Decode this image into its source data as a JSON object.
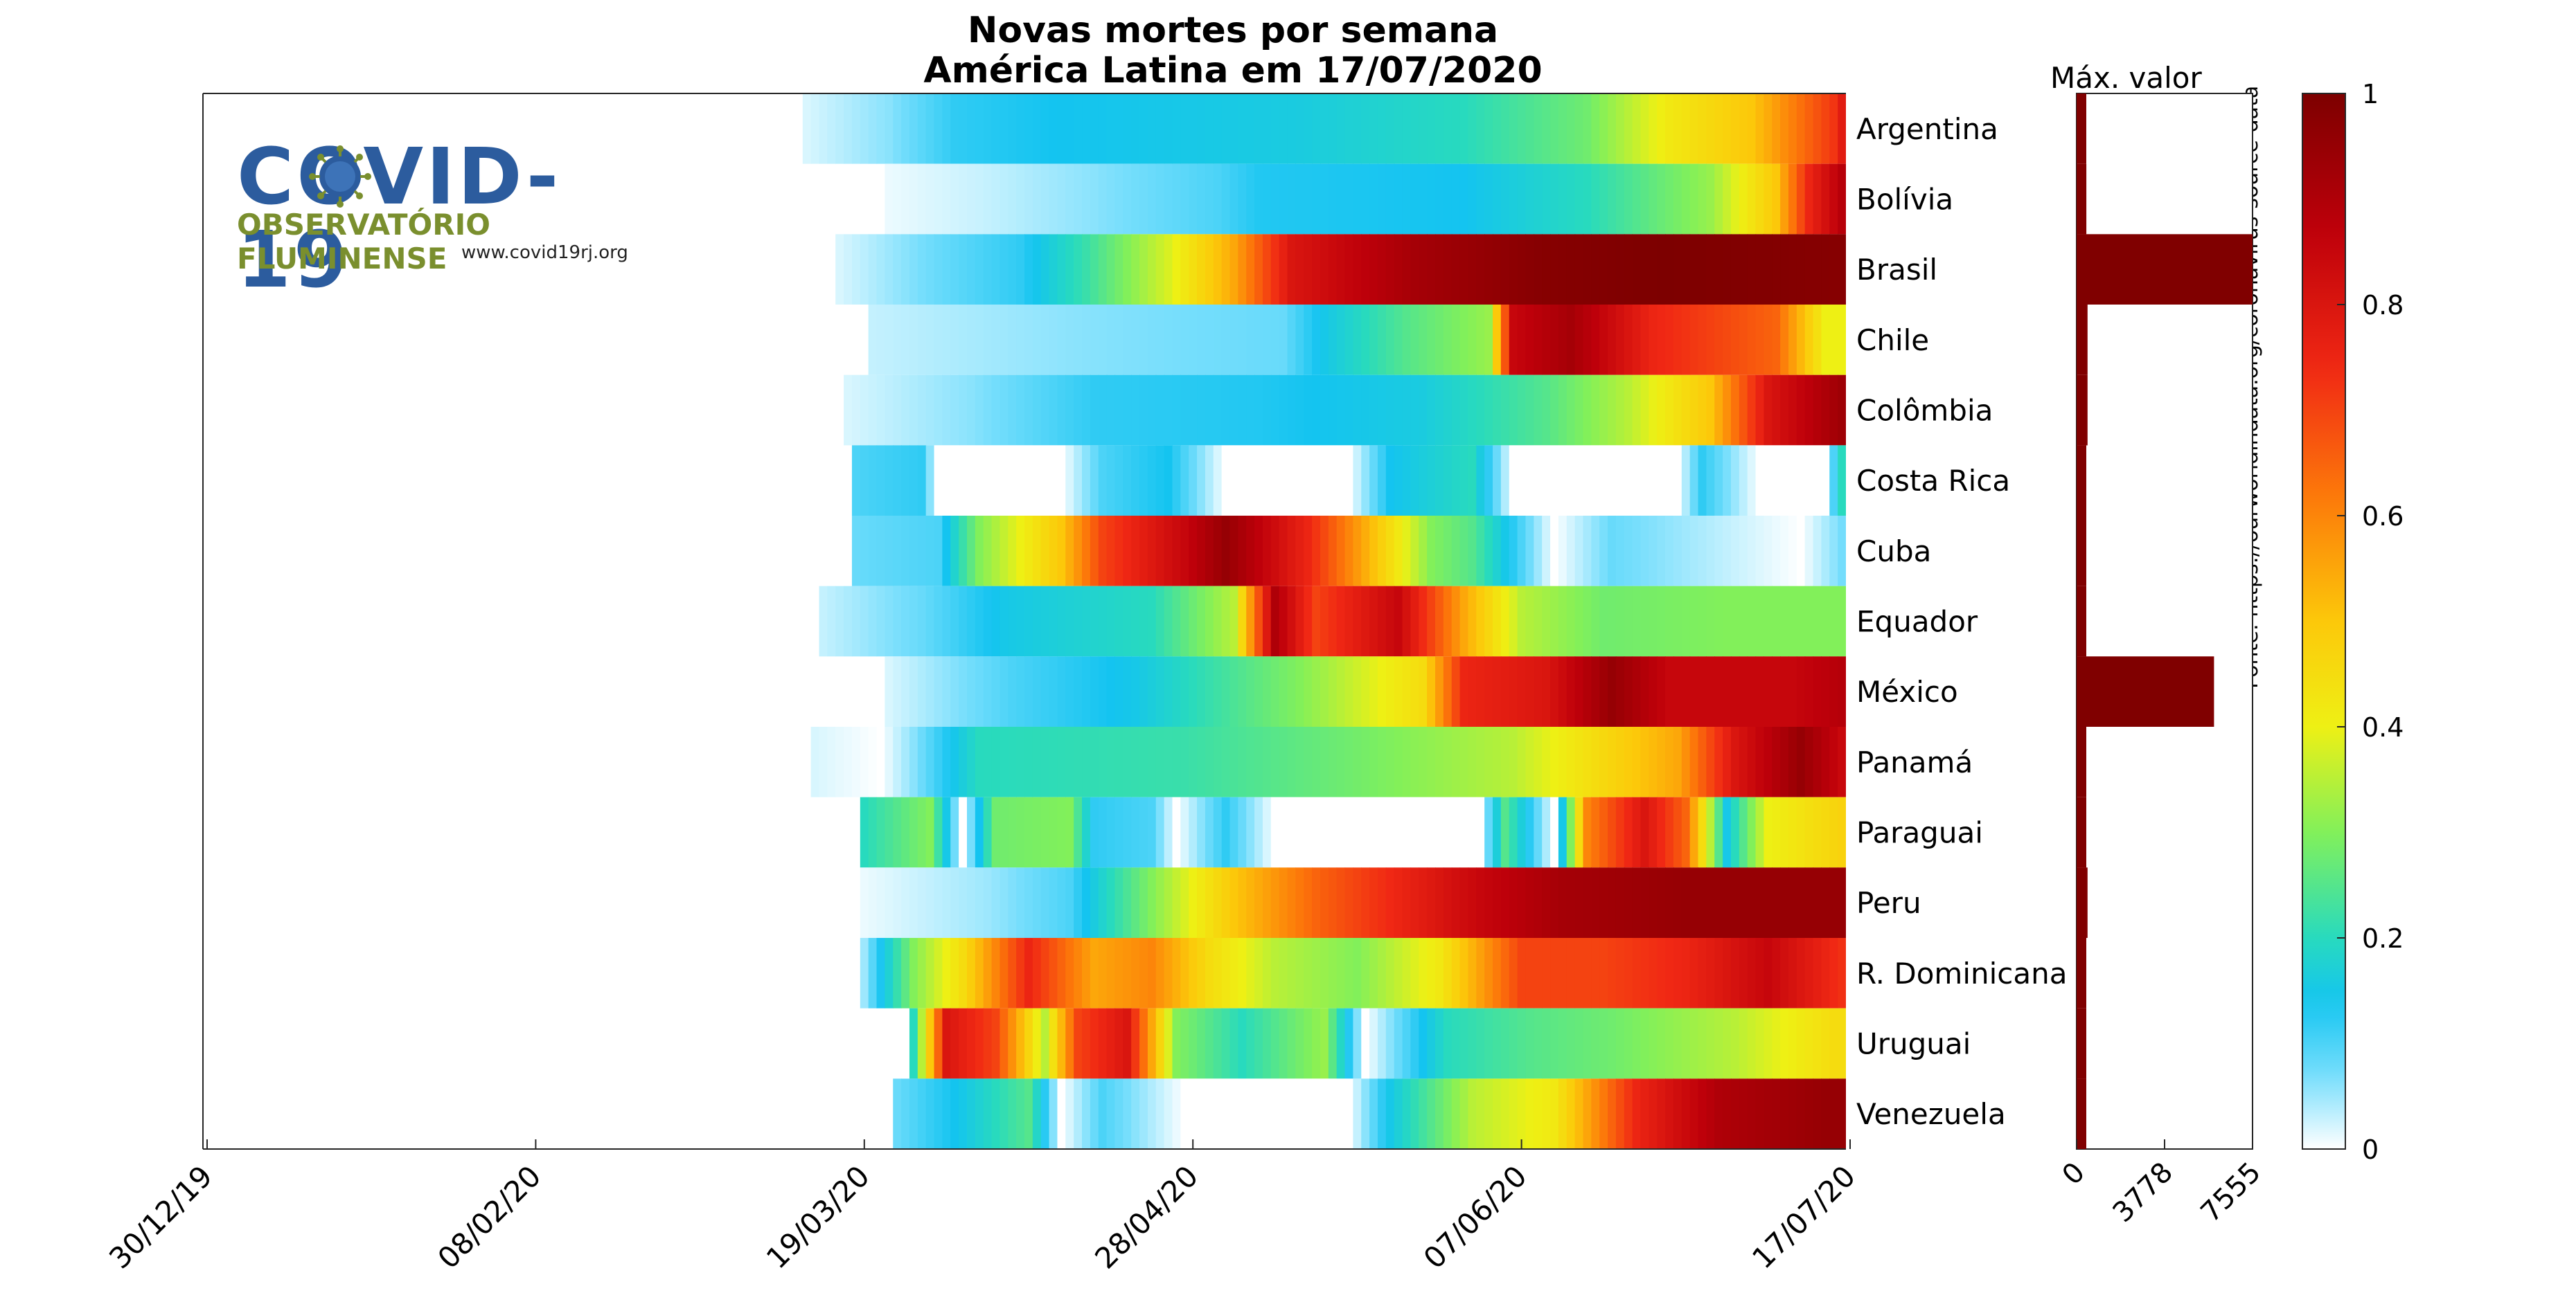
{
  "chart_data": {
    "type": "heatmap",
    "title": "Novas mortes por semana",
    "subtitle": "América Latina em 17/07/2020",
    "x_tick_labels": [
      "30/12/19",
      "08/02/20",
      "19/03/20",
      "28/04/20",
      "07/06/20",
      "17/07/20"
    ],
    "countries": [
      "Argentina",
      "Bolívia",
      "Brasil",
      "Chile",
      "Colômbia",
      "Costa Rica",
      "Cuba",
      "Equador",
      "México",
      "Panamá",
      "Paraguai",
      "Peru",
      "R. Dominicana",
      "Uruguai",
      "Venezuela"
    ],
    "heat_rows": [
      {
        "start": "12/03/20",
        "stops": [
          [
            0,
            0.02
          ],
          [
            10,
            0.06
          ],
          [
            18,
            0.12
          ],
          [
            30,
            0.14
          ],
          [
            60,
            0.16
          ],
          [
            80,
            0.2
          ],
          [
            95,
            0.28
          ],
          [
            105,
            0.42
          ],
          [
            115,
            0.5
          ],
          [
            125,
            0.72
          ],
          [
            128,
            0.9
          ]
        ]
      },
      {
        "start": "22/03/20",
        "stops": [
          [
            0,
            0.01
          ],
          [
            12,
            0.03
          ],
          [
            25,
            0.06
          ],
          [
            40,
            0.1
          ],
          [
            45,
            0.13
          ],
          [
            70,
            0.14
          ],
          [
            85,
            0.2
          ],
          [
            100,
            0.32
          ],
          [
            108,
            0.5
          ],
          [
            112,
            0.75
          ],
          [
            118,
            0.95
          ]
        ]
      },
      {
        "start": "16/03/20",
        "stops": [
          [
            0,
            0.02
          ],
          [
            12,
            0.08
          ],
          [
            22,
            0.12
          ],
          [
            30,
            0.22
          ],
          [
            40,
            0.38
          ],
          [
            48,
            0.55
          ],
          [
            55,
            0.8
          ],
          [
            70,
            0.92
          ],
          [
            85,
            0.98
          ],
          [
            100,
            1.0
          ],
          [
            124,
            0.98
          ]
        ]
      },
      {
        "start": "20/03/20",
        "stops": [
          [
            0,
            0.03
          ],
          [
            25,
            0.06
          ],
          [
            50,
            0.08
          ],
          [
            55,
            0.15
          ],
          [
            65,
            0.25
          ],
          [
            75,
            0.32
          ],
          [
            78,
            0.85
          ],
          [
            85,
            0.92
          ],
          [
            95,
            0.75
          ],
          [
            110,
            0.65
          ],
          [
            116,
            0.4
          ]
        ]
      },
      {
        "start": "17/03/20",
        "stops": [
          [
            0,
            0.02
          ],
          [
            15,
            0.06
          ],
          [
            30,
            0.12
          ],
          [
            50,
            0.13
          ],
          [
            70,
            0.16
          ],
          [
            85,
            0.25
          ],
          [
            95,
            0.35
          ],
          [
            105,
            0.5
          ],
          [
            112,
            0.8
          ],
          [
            122,
            0.95
          ]
        ]
      },
      {
        "start": "18/03/20",
        "stops": [
          [
            0,
            0.1
          ],
          [
            8,
            0.12
          ],
          [
            10,
            0.0
          ],
          [
            25,
            0.0
          ],
          [
            30,
            0.1
          ],
          [
            38,
            0.14
          ],
          [
            45,
            0.0
          ],
          [
            60,
            0.0
          ],
          [
            65,
            0.14
          ],
          [
            75,
            0.2
          ],
          [
            80,
            0.0
          ],
          [
            100,
            0.0
          ],
          [
            103,
            0.12
          ],
          [
            110,
            0.0
          ],
          [
            118,
            0.0
          ],
          [
            120,
            0.2
          ],
          [
            128,
            0.3
          ]
        ]
      },
      {
        "start": "18/03/20",
        "stops": [
          [
            0,
            0.08
          ],
          [
            10,
            0.1
          ],
          [
            15,
            0.3
          ],
          [
            25,
            0.5
          ],
          [
            30,
            0.7
          ],
          [
            40,
            0.85
          ],
          [
            45,
            0.95
          ],
          [
            55,
            0.75
          ],
          [
            65,
            0.45
          ],
          [
            70,
            0.3
          ],
          [
            75,
            0.25
          ],
          [
            85,
            0.0
          ],
          [
            92,
            0.08
          ],
          [
            115,
            0.0
          ],
          [
            122,
            0.1
          ]
        ]
      },
      {
        "start": "14/03/20",
        "stops": [
          [
            0,
            0.03
          ],
          [
            12,
            0.08
          ],
          [
            22,
            0.15
          ],
          [
            40,
            0.2
          ],
          [
            50,
            0.35
          ],
          [
            55,
            0.9
          ],
          [
            60,
            0.7
          ],
          [
            70,
            0.85
          ],
          [
            78,
            0.55
          ],
          [
            85,
            0.35
          ],
          [
            95,
            0.28
          ],
          [
            110,
            0.3
          ],
          [
            126,
            0.3
          ]
        ]
      },
      {
        "start": "22/03/20",
        "stops": [
          [
            0,
            0.02
          ],
          [
            15,
            0.1
          ],
          [
            30,
            0.15
          ],
          [
            50,
            0.3
          ],
          [
            65,
            0.45
          ],
          [
            70,
            0.75
          ],
          [
            80,
            0.8
          ],
          [
            88,
            0.95
          ],
          [
            95,
            0.85
          ],
          [
            110,
            0.85
          ],
          [
            118,
            0.9
          ]
        ]
      },
      {
        "start": "13/03/20",
        "stops": [
          [
            0,
            0.02
          ],
          [
            8,
            0.0
          ],
          [
            12,
            0.06
          ],
          [
            20,
            0.2
          ],
          [
            45,
            0.22
          ],
          [
            65,
            0.28
          ],
          [
            85,
            0.35
          ],
          [
            95,
            0.45
          ],
          [
            105,
            0.55
          ],
          [
            112,
            0.8
          ],
          [
            120,
            0.95
          ],
          [
            127,
            0.8
          ]
        ]
      },
      {
        "start": "19/03/20",
        "stops": [
          [
            0,
            0.2
          ],
          [
            8,
            0.3
          ],
          [
            12,
            0.0
          ],
          [
            16,
            0.28
          ],
          [
            25,
            0.3
          ],
          [
            28,
            0.12
          ],
          [
            35,
            0.1
          ],
          [
            38,
            0.0
          ],
          [
            44,
            0.12
          ],
          [
            50,
            0.0
          ],
          [
            75,
            0.0
          ],
          [
            78,
            0.25
          ],
          [
            84,
            0.0
          ],
          [
            88,
            0.6
          ],
          [
            95,
            0.8
          ],
          [
            100,
            0.65
          ],
          [
            105,
            0.15
          ],
          [
            110,
            0.4
          ],
          [
            122,
            0.5
          ]
        ]
      },
      {
        "start": "19/03/20",
        "stops": [
          [
            0,
            0.01
          ],
          [
            15,
            0.05
          ],
          [
            25,
            0.1
          ],
          [
            35,
            0.3
          ],
          [
            45,
            0.5
          ],
          [
            55,
            0.65
          ],
          [
            65,
            0.75
          ],
          [
            75,
            0.85
          ],
          [
            85,
            0.92
          ],
          [
            100,
            0.95
          ],
          [
            121,
            0.95
          ]
        ]
      },
      {
        "start": "19/03/20",
        "stops": [
          [
            0,
            0.05
          ],
          [
            6,
            0.3
          ],
          [
            12,
            0.45
          ],
          [
            20,
            0.75
          ],
          [
            28,
            0.55
          ],
          [
            35,
            0.6
          ],
          [
            42,
            0.45
          ],
          [
            50,
            0.35
          ],
          [
            60,
            0.3
          ],
          [
            70,
            0.42
          ],
          [
            80,
            0.7
          ],
          [
            90,
            0.7
          ],
          [
            100,
            0.75
          ],
          [
            110,
            0.85
          ],
          [
            121,
            0.7
          ]
        ]
      },
      {
        "start": "25/03/20",
        "stops": [
          [
            0,
            0.2
          ],
          [
            4,
            0.8
          ],
          [
            10,
            0.7
          ],
          [
            16,
            0.35
          ],
          [
            20,
            0.7
          ],
          [
            26,
            0.8
          ],
          [
            32,
            0.3
          ],
          [
            40,
            0.2
          ],
          [
            50,
            0.32
          ],
          [
            55,
            0.0
          ],
          [
            65,
            0.2
          ],
          [
            75,
            0.25
          ],
          [
            85,
            0.28
          ],
          [
            100,
            0.35
          ],
          [
            112,
            0.45
          ]
        ]
      },
      {
        "start": "23/03/20",
        "stops": [
          [
            0,
            0.08
          ],
          [
            8,
            0.15
          ],
          [
            16,
            0.25
          ],
          [
            20,
            0.0
          ],
          [
            25,
            0.1
          ],
          [
            35,
            0.0
          ],
          [
            55,
            0.0
          ],
          [
            60,
            0.15
          ],
          [
            70,
            0.35
          ],
          [
            80,
            0.42
          ],
          [
            90,
            0.75
          ],
          [
            100,
            0.9
          ],
          [
            113,
            0.95
          ]
        ]
      }
    ],
    "max_values": [
      150,
      420,
      7555,
      470,
      470,
      20,
      30,
      300,
      5900,
      250,
      10,
      470,
      50,
      5,
      60
    ],
    "max_axis": {
      "label": "Máx. valor",
      "ticks": [
        0,
        3778,
        7555
      ],
      "range": [
        0,
        7555
      ]
    },
    "colorbar": {
      "range": [
        0,
        1
      ],
      "ticks": [
        "0",
        "0.2",
        "0.4",
        "0.6",
        "0.8",
        "1"
      ]
    },
    "bar_color": "#800000"
  },
  "source_text": "Fonte: https://ourworldindata.org/coronavirus-source-data",
  "logo": {
    "title": "COVID-19",
    "subtitle": "OBSERVATÓRIO FLUMINENSE",
    "url": "www.covid19rj.org"
  }
}
